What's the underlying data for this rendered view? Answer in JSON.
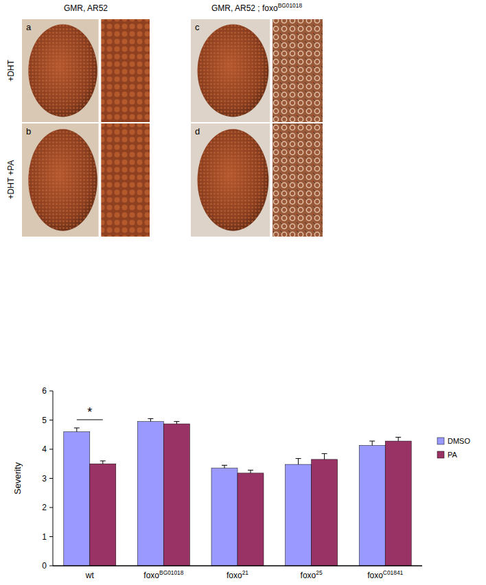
{
  "chart_data": {
    "type": "bar",
    "categories": [
      "wt",
      "foxoBG01018",
      "foxo21",
      "foxo25",
      "foxoC01841"
    ],
    "series": [
      {
        "name": "DMSO",
        "color": "#9999ff",
        "values": [
          4.6,
          4.95,
          3.35,
          3.48,
          4.13
        ],
        "errors": [
          0.13,
          0.1,
          0.1,
          0.2,
          0.15
        ]
      },
      {
        "name": "PA",
        "color": "#993366",
        "values": [
          3.5,
          4.87,
          3.18,
          3.65,
          4.28
        ],
        "errors": [
          0.1,
          0.08,
          0.1,
          0.2,
          0.13
        ]
      }
    ],
    "y_label": "Severity",
    "ylim": [
      0,
      6
    ],
    "yticks": [
      0,
      1,
      2,
      3,
      4,
      5,
      6
    ],
    "grid": false,
    "legend": "right",
    "annotations": [
      "*"
    ]
  },
  "figure": {
    "columns": [
      "GMR, AR52",
      "GMR, AR52 ; foxoBG01018"
    ],
    "rows": [
      "+DHT",
      "+DHT +PA"
    ],
    "panels": [
      "a",
      "b",
      "c",
      "d"
    ]
  }
}
